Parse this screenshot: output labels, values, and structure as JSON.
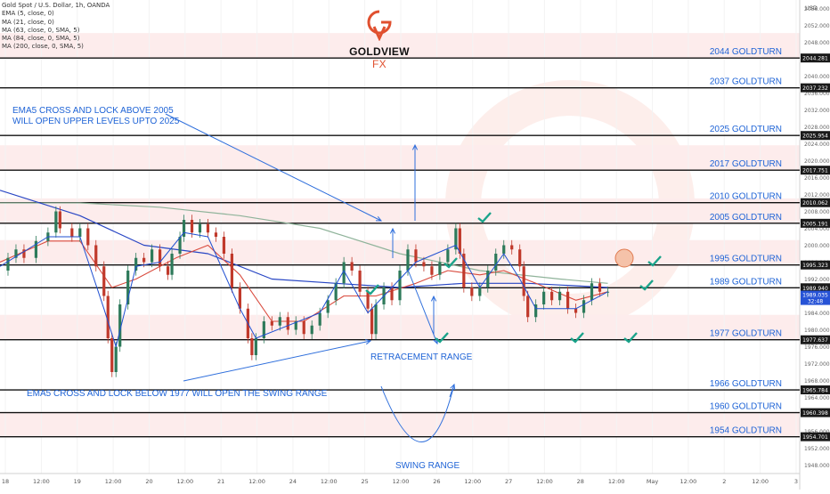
{
  "chart_data": {
    "type": "line",
    "title": "Gold Spot / U.S. Dollar, 1h, OANDA",
    "ylim": [
      1946,
      2058
    ],
    "currency": "USD",
    "legend": [
      "Gold Spot / U.S. Dollar, 1h, OANDA",
      "EMA (5, close, 0)",
      "MA (21, close, 0)",
      "MA (63, close, 0, SMA, 5)",
      "MA (84, close, 0, SMA, 5)",
      "MA (200, close, 0, SMA, 5)"
    ],
    "y_ticks": [
      2056,
      2052,
      2048,
      2044,
      2040,
      2036,
      2032,
      2028,
      2024,
      2020,
      2016,
      2012,
      2008,
      2004,
      2000,
      1996,
      1992,
      1988,
      1984,
      1980,
      1976,
      1972,
      1968,
      1964,
      1960,
      1956,
      1952,
      1948
    ],
    "x_ticks": [
      "18",
      "12:00",
      "19",
      "12:00",
      "20",
      "12:00",
      "21",
      "12:00",
      "24",
      "12:00",
      "25",
      "12:00",
      "26",
      "12:00",
      "27",
      "12:00",
      "28",
      "12:00",
      "May",
      "12:00",
      "2",
      "12:00",
      "3"
    ],
    "levels": [
      {
        "name": "2044 GOLDTURN",
        "price": 2044.281,
        "price_label": "2044.281",
        "shade": true
      },
      {
        "name": "2037 GOLDTURN",
        "price": 2037.232,
        "price_label": "2037.232",
        "shade": false
      },
      {
        "name": "2025 GOLDTURN",
        "price": 2025.954,
        "price_label": "2025.954",
        "shade": false
      },
      {
        "name": "2017 GOLDTURN",
        "price": 2017.751,
        "price_label": "2017.751",
        "shade": true
      },
      {
        "name": "2010 GOLDTURN",
        "price": 2010.062,
        "price_label": "2010.062",
        "shade": false
      },
      {
        "name": "2005 GOLDTURN",
        "price": 2005.191,
        "price_label": "2005.191",
        "shade": true
      },
      {
        "name": "1995 GOLDTURN",
        "price": 1995.323,
        "price_label": "1995.323",
        "shade": true
      },
      {
        "name": "1989 GOLDTURN",
        "price": 1989.94,
        "price_label": "1989.940",
        "shade": false
      },
      {
        "name": "1977 GOLDTURN",
        "price": 1977.637,
        "price_label": "1977.637",
        "shade": true
      },
      {
        "name": "1966 GOLDTURN",
        "price": 1965.784,
        "price_label": "1965.784",
        "shade": false
      },
      {
        "name": "1960 GOLDTURN",
        "price": 1960.398,
        "price_label": "1960.398",
        "shade": false
      },
      {
        "name": "1954 GOLDTURN",
        "price": 1954.701,
        "price_label": "1954.701",
        "shade": true
      }
    ],
    "current_price": {
      "price": 1989.035,
      "label": "1989.035",
      "countdown": "32:48"
    },
    "annotations": [
      {
        "text": "EMA5 CROSS AND LOCK ABOVE 2005",
        "kind": "note"
      },
      {
        "text": "WILL OPEN UPPER LEVELS UPTO 2025",
        "kind": "note"
      },
      {
        "text": "RETRACEMENT RANGE",
        "kind": "note"
      },
      {
        "text": "EMA5 CROSS AND LOCK BELOW 1977 WILL OPEN THE SWING RANGE",
        "kind": "note"
      },
      {
        "text": "SWING RANGE",
        "kind": "note"
      }
    ],
    "price_path": [
      [
        0,
        1994
      ],
      [
        0.01,
        1997
      ],
      [
        0.02,
        1999
      ],
      [
        0.03,
        1997
      ],
      [
        0.045,
        2001
      ],
      [
        0.06,
        2003
      ],
      [
        0.07,
        2008
      ],
      [
        0.075,
        2004
      ],
      [
        0.09,
        2002
      ],
      [
        0.1,
        2004
      ],
      [
        0.11,
        2000
      ],
      [
        0.12,
        1995
      ],
      [
        0.13,
        1988
      ],
      [
        0.135,
        1978
      ],
      [
        0.14,
        1970
      ],
      [
        0.145,
        1976
      ],
      [
        0.15,
        1986
      ],
      [
        0.16,
        1994
      ],
      [
        0.17,
        1997
      ],
      [
        0.18,
        1996
      ],
      [
        0.19,
        1999
      ],
      [
        0.2,
        1995
      ],
      [
        0.21,
        1993
      ],
      [
        0.215,
        1998
      ],
      [
        0.225,
        2002
      ],
      [
        0.23,
        2006
      ],
      [
        0.24,
        2003
      ],
      [
        0.25,
        2005
      ],
      [
        0.26,
        2003
      ],
      [
        0.27,
        2002
      ],
      [
        0.28,
        1998
      ],
      [
        0.29,
        1990
      ],
      [
        0.3,
        1985
      ],
      [
        0.31,
        1978
      ],
      [
        0.315,
        1974
      ],
      [
        0.32,
        1978
      ],
      [
        0.33,
        1982
      ],
      [
        0.34,
        1981
      ],
      [
        0.35,
        1983
      ],
      [
        0.36,
        1980
      ],
      [
        0.37,
        1982
      ],
      [
        0.38,
        1979
      ],
      [
        0.39,
        1981
      ],
      [
        0.4,
        1984
      ],
      [
        0.41,
        1987
      ],
      [
        0.42,
        1991
      ],
      [
        0.43,
        1996
      ],
      [
        0.44,
        1994
      ],
      [
        0.45,
        1989
      ],
      [
        0.46,
        1985
      ],
      [
        0.465,
        1979
      ],
      [
        0.47,
        1986
      ],
      [
        0.48,
        1990
      ],
      [
        0.49,
        1987
      ],
      [
        0.5,
        1994
      ],
      [
        0.51,
        1999
      ],
      [
        0.52,
        1996
      ],
      [
        0.53,
        1995
      ],
      [
        0.54,
        1993
      ],
      [
        0.55,
        1996
      ],
      [
        0.56,
        1999
      ],
      [
        0.57,
        2004
      ],
      [
        0.575,
        1998
      ],
      [
        0.58,
        1990
      ],
      [
        0.59,
        1988
      ],
      [
        0.6,
        1990
      ],
      [
        0.61,
        1994
      ],
      [
        0.62,
        1998
      ],
      [
        0.63,
        2000
      ],
      [
        0.64,
        1999
      ],
      [
        0.65,
        1995
      ],
      [
        0.655,
        1988
      ],
      [
        0.66,
        1983
      ],
      [
        0.67,
        1986
      ],
      [
        0.68,
        1989
      ],
      [
        0.69,
        1987
      ],
      [
        0.7,
        1989
      ],
      [
        0.71,
        1985
      ],
      [
        0.72,
        1984
      ],
      [
        0.73,
        1987
      ],
      [
        0.74,
        1991
      ],
      [
        0.75,
        1989
      ],
      [
        0.76,
        1989
      ]
    ],
    "ema5": [
      [
        0,
        1995
      ],
      [
        0.06,
        2002
      ],
      [
        0.1,
        2002
      ],
      [
        0.13,
        1985
      ],
      [
        0.145,
        1976
      ],
      [
        0.17,
        1995
      ],
      [
        0.2,
        1996
      ],
      [
        0.23,
        2003
      ],
      [
        0.26,
        2002
      ],
      [
        0.3,
        1985
      ],
      [
        0.32,
        1978
      ],
      [
        0.36,
        1981
      ],
      [
        0.4,
        1984
      ],
      [
        0.43,
        1994
      ],
      [
        0.46,
        1984
      ],
      [
        0.5,
        1992
      ],
      [
        0.52,
        1996
      ],
      [
        0.57,
        2000
      ],
      [
        0.6,
        1990
      ],
      [
        0.63,
        1998
      ],
      [
        0.65,
        1992
      ],
      [
        0.67,
        1985
      ],
      [
        0.72,
        1985
      ],
      [
        0.76,
        1989
      ]
    ],
    "ma21": [
      [
        0,
        1996
      ],
      [
        0.06,
        2001
      ],
      [
        0.1,
        2001
      ],
      [
        0.14,
        1990
      ],
      [
        0.17,
        1992
      ],
      [
        0.22,
        1997
      ],
      [
        0.26,
        2000
      ],
      [
        0.3,
        1993
      ],
      [
        0.34,
        1982
      ],
      [
        0.38,
        1982
      ],
      [
        0.43,
        1988
      ],
      [
        0.47,
        1988
      ],
      [
        0.52,
        1991
      ],
      [
        0.56,
        1994
      ],
      [
        0.6,
        1993
      ],
      [
        0.63,
        1994
      ],
      [
        0.67,
        1991
      ],
      [
        0.72,
        1987
      ],
      [
        0.76,
        1989
      ]
    ],
    "ma63": [
      [
        0,
        2013
      ],
      [
        0.1,
        2007
      ],
      [
        0.18,
        2000
      ],
      [
        0.26,
        1998
      ],
      [
        0.34,
        1992
      ],
      [
        0.42,
        1991
      ],
      [
        0.5,
        1990
      ],
      [
        0.58,
        1991
      ],
      [
        0.66,
        1991
      ],
      [
        0.76,
        1990
      ]
    ],
    "ma200": [
      [
        0,
        2010
      ],
      [
        0.1,
        2010
      ],
      [
        0.2,
        2009
      ],
      [
        0.3,
        2007
      ],
      [
        0.4,
        2004
      ],
      [
        0.5,
        1998
      ],
      [
        0.6,
        1994
      ],
      [
        0.7,
        1992
      ],
      [
        0.76,
        1991
      ]
    ]
  }
}
